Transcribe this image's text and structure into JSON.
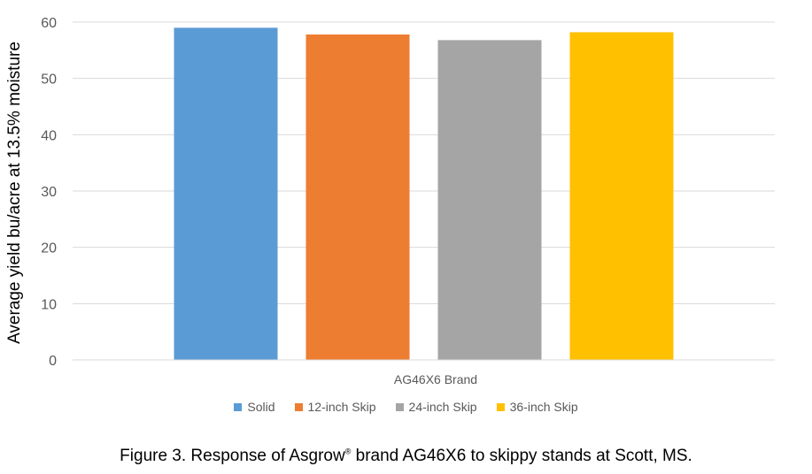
{
  "chart_data": {
    "type": "bar",
    "categories": [
      "AG46X6 Brand"
    ],
    "series": [
      {
        "name": "Solid",
        "values": [
          59
        ],
        "color": "#5B9BD5"
      },
      {
        "name": "12-inch Skip",
        "values": [
          57.8
        ],
        "color": "#ED7D31"
      },
      {
        "name": "24-inch Skip",
        "values": [
          56.8
        ],
        "color": "#A5A5A5"
      },
      {
        "name": "36-inch Skip",
        "values": [
          58.2
        ],
        "color": "#FFC000"
      }
    ],
    "ylabel": "Average yield bu/acre at 13.5% moisture",
    "xlabel": "",
    "ylim": [
      0,
      60
    ],
    "yticks": [
      "0",
      "10",
      "20",
      "30",
      "40",
      "50",
      "60"
    ],
    "grid": true,
    "legend_position": "bottom"
  },
  "caption": {
    "prefix": "Figure 3. Response of  Asgrow",
    "mark": "®",
    "suffix": " brand AG46X6 to skippy stands at Scott, MS."
  }
}
